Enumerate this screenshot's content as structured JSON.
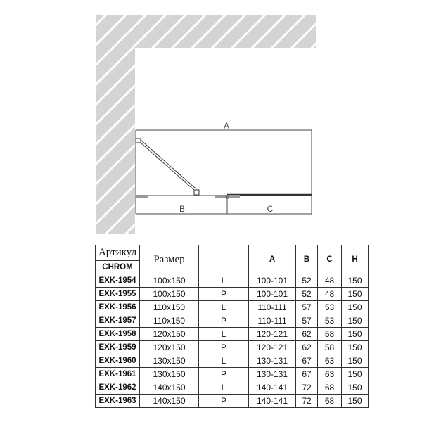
{
  "diagram": {
    "dim_a": "A",
    "dim_b": "B",
    "dim_c": "C"
  },
  "table": {
    "header": {
      "article": "Артикул",
      "finish": "CHROM",
      "size": "Размер",
      "side": "",
      "a": "A",
      "b": "B",
      "c": "C",
      "h": "H"
    },
    "rows": [
      [
        "EXK-1954",
        "100x150",
        "L",
        "100-101",
        "52",
        "48",
        "150"
      ],
      [
        "EXK-1955",
        "100x150",
        "P",
        "100-101",
        "52",
        "48",
        "150"
      ],
      [
        "EXK-1956",
        "110x150",
        "L",
        "110-111",
        "57",
        "53",
        "150"
      ],
      [
        "EXK-1957",
        "110x150",
        "P",
        "110-111",
        "57",
        "53",
        "150"
      ],
      [
        "EXK-1958",
        "120x150",
        "L",
        "120-121",
        "62",
        "58",
        "150"
      ],
      [
        "EXK-1959",
        "120x150",
        "P",
        "120-121",
        "62",
        "58",
        "150"
      ],
      [
        "EXK-1960",
        "130x150",
        "L",
        "130-131",
        "67",
        "63",
        "150"
      ],
      [
        "EXK-1961",
        "130x150",
        "P",
        "130-131",
        "67",
        "63",
        "150"
      ],
      [
        "EXK-1962",
        "140x150",
        "L",
        "140-141",
        "72",
        "68",
        "150"
      ],
      [
        "EXK-1963",
        "140x150",
        "P",
        "140-141",
        "72",
        "68",
        "150"
      ]
    ]
  }
}
